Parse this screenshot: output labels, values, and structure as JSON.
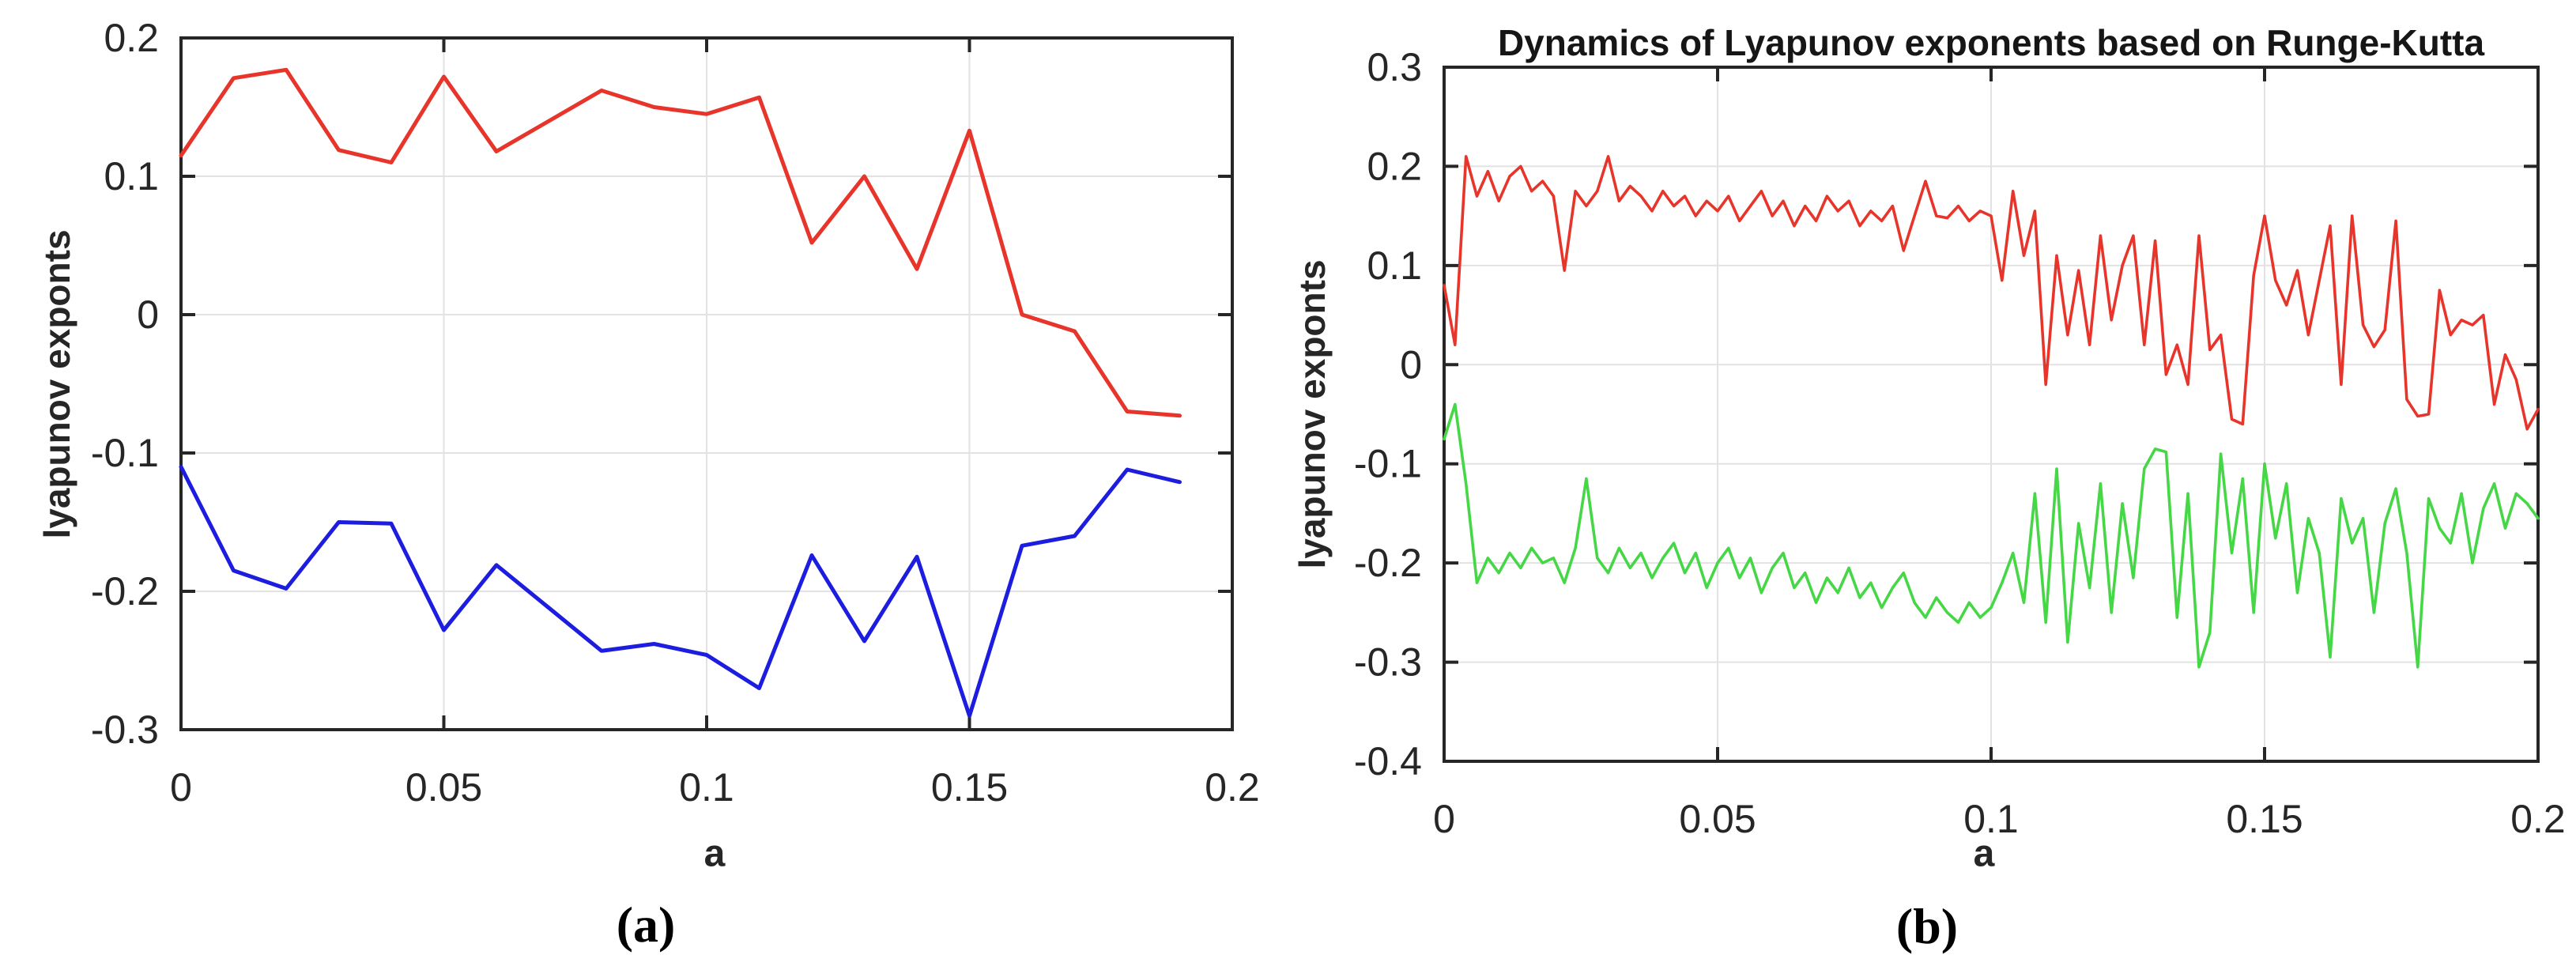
{
  "captions": {
    "a": "(a)",
    "b": "(b)"
  },
  "colors": {
    "axis": "#262626",
    "grid": "#e2e2e2",
    "tick_text": "#262626",
    "background": "#ffffff"
  },
  "chart_data": [
    {
      "id": "a",
      "type": "line",
      "title": "",
      "xlabel": "a",
      "ylabel": "lyapunov exponts",
      "caption": "(a)",
      "xlim": [
        0,
        0.2
      ],
      "ylim": [
        -0.3,
        0.2
      ],
      "xticks": [
        0,
        0.05,
        0.1,
        0.15,
        0.2
      ],
      "xtick_labels": [
        "0",
        "0.05",
        "0.1",
        "0.15",
        "0.2"
      ],
      "yticks": [
        0.2,
        0.1,
        0,
        -0.1,
        -0.2,
        -0.3
      ],
      "ytick_labels": [
        "0.2",
        "0.1",
        "0",
        "-0.1",
        "-0.2",
        "-0.3"
      ],
      "grid": true,
      "legend": "none",
      "x_start": 0,
      "x_step": 0.01,
      "series": [
        {
          "name": "lyapunov-exponent-1-red",
          "color": "#e8352b",
          "line_width": 5,
          "values": [
            0.115,
            0.171,
            0.177,
            0.119,
            0.11,
            0.172,
            0.118,
            0.14,
            0.162,
            0.15,
            0.145,
            0.157,
            0.052,
            0.1,
            0.033,
            0.133,
            0.0,
            -0.012,
            -0.07,
            -0.073
          ]
        },
        {
          "name": "lyapunov-exponent-2-blue",
          "color": "#1d1de0",
          "line_width": 5,
          "values": [
            -0.11,
            -0.185,
            -0.198,
            -0.15,
            -0.151,
            -0.228,
            -0.181,
            -0.212,
            -0.243,
            -0.238,
            -0.246,
            -0.27,
            -0.174,
            -0.236,
            -0.175,
            -0.29,
            -0.167,
            -0.16,
            -0.112,
            -0.121
          ]
        }
      ]
    },
    {
      "id": "b",
      "type": "line",
      "title": "Dynamics of Lyapunov exponents based on Runge-Kutta",
      "xlabel": "a",
      "ylabel": "lyapunov exponts",
      "caption": "(b)",
      "xlim": [
        0,
        0.2
      ],
      "ylim": [
        -0.4,
        0.3
      ],
      "xticks": [
        0,
        0.05,
        0.1,
        0.15,
        0.2
      ],
      "xtick_labels": [
        "0",
        "0.05",
        "0.1",
        "0.15",
        "0.2"
      ],
      "yticks": [
        0.3,
        0.2,
        0.1,
        0,
        -0.1,
        -0.2,
        -0.3,
        -0.4
      ],
      "ytick_labels": [
        "0.3",
        "0.2",
        "0.1",
        "0",
        "-0.1",
        "-0.2",
        "-0.3",
        "-0.4"
      ],
      "grid": true,
      "legend": "none",
      "x_start": 0,
      "x_step": 0.002,
      "series": [
        {
          "name": "lyapunov-exponent-1-red",
          "color": "#e8352b",
          "line_width": 3.6,
          "values": [
            0.08,
            0.02,
            0.21,
            0.17,
            0.195,
            0.165,
            0.19,
            0.2,
            0.175,
            0.185,
            0.17,
            0.095,
            0.175,
            0.16,
            0.175,
            0.21,
            0.165,
            0.18,
            0.17,
            0.155,
            0.175,
            0.16,
            0.17,
            0.15,
            0.165,
            0.155,
            0.17,
            0.145,
            0.16,
            0.175,
            0.15,
            0.165,
            0.14,
            0.16,
            0.145,
            0.17,
            0.155,
            0.165,
            0.14,
            0.155,
            0.145,
            0.16,
            0.115,
            0.15,
            0.185,
            0.15,
            0.148,
            0.16,
            0.145,
            0.155,
            0.15,
            0.085,
            0.175,
            0.11,
            0.155,
            -0.02,
            0.11,
            0.03,
            0.095,
            0.02,
            0.13,
            0.045,
            0.1,
            0.13,
            0.02,
            0.125,
            -0.01,
            0.02,
            -0.02,
            0.13,
            0.015,
            0.03,
            -0.055,
            -0.06,
            0.09,
            0.15,
            0.085,
            0.06,
            0.095,
            0.03,
            0.085,
            0.14,
            -0.02,
            0.15,
            0.04,
            0.018,
            0.035,
            0.145,
            -0.035,
            -0.052,
            -0.05,
            0.075,
            0.03,
            0.045,
            0.04,
            0.05,
            -0.04,
            0.01,
            -0.015,
            -0.065,
            -0.045
          ]
        },
        {
          "name": "lyapunov-exponent-2-green",
          "color": "#46d746",
          "line_width": 3.6,
          "values": [
            -0.075,
            -0.04,
            -0.12,
            -0.22,
            -0.195,
            -0.21,
            -0.19,
            -0.205,
            -0.185,
            -0.2,
            -0.195,
            -0.22,
            -0.185,
            -0.115,
            -0.195,
            -0.21,
            -0.185,
            -0.205,
            -0.19,
            -0.215,
            -0.195,
            -0.18,
            -0.21,
            -0.19,
            -0.225,
            -0.2,
            -0.185,
            -0.215,
            -0.195,
            -0.23,
            -0.205,
            -0.19,
            -0.225,
            -0.21,
            -0.24,
            -0.215,
            -0.23,
            -0.205,
            -0.235,
            -0.22,
            -0.245,
            -0.225,
            -0.21,
            -0.24,
            -0.255,
            -0.235,
            -0.25,
            -0.26,
            -0.24,
            -0.255,
            -0.245,
            -0.22,
            -0.19,
            -0.24,
            -0.13,
            -0.26,
            -0.105,
            -0.28,
            -0.16,
            -0.225,
            -0.12,
            -0.25,
            -0.14,
            -0.215,
            -0.105,
            -0.085,
            -0.088,
            -0.255,
            -0.13,
            -0.305,
            -0.27,
            -0.09,
            -0.19,
            -0.115,
            -0.25,
            -0.1,
            -0.175,
            -0.12,
            -0.23,
            -0.155,
            -0.19,
            -0.295,
            -0.135,
            -0.18,
            -0.155,
            -0.25,
            -0.16,
            -0.125,
            -0.19,
            -0.305,
            -0.135,
            -0.165,
            -0.18,
            -0.13,
            -0.2,
            -0.145,
            -0.12,
            -0.165,
            -0.13,
            -0.14,
            -0.155
          ]
        }
      ]
    }
  ]
}
